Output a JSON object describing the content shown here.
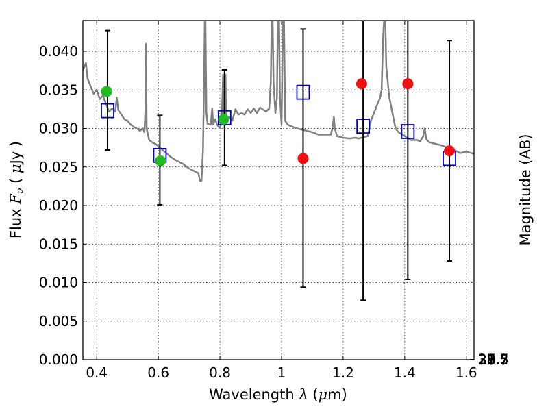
{
  "chart_data": {
    "type": "scatter",
    "title": "",
    "xlabel": {
      "text": "Wavelength",
      "symbol": "λ",
      "unit_open": " (",
      "unit_mu": "μ",
      "unit_rest": "m)"
    },
    "ylabel": {
      "text": "Flux",
      "symbol": "F",
      "subscript": "ν",
      "unit_open": "( ",
      "unit_mu": "μ",
      "unit_rest": "Jy )"
    },
    "y2label": "Magnitude (AB)",
    "xlim": [
      0.355,
      1.625
    ],
    "ylim": [
      0.0,
      0.044
    ],
    "grid": true,
    "x_ticks": [
      {
        "value": 0.4,
        "label": "0.4"
      },
      {
        "value": 0.6,
        "label": "0.6"
      },
      {
        "value": 0.8,
        "label": "0.8"
      },
      {
        "value": 1.0,
        "label": "1"
      },
      {
        "value": 1.2,
        "label": "1.2"
      },
      {
        "value": 1.4,
        "label": "1.4"
      },
      {
        "value": 1.6,
        "label": "1.6"
      }
    ],
    "y_ticks": [
      {
        "value": 0.0,
        "label": "0.000"
      },
      {
        "value": 0.005,
        "label": "0.005"
      },
      {
        "value": 0.01,
        "label": "0.010"
      },
      {
        "value": 0.015,
        "label": "0.015"
      },
      {
        "value": 0.02,
        "label": "0.020"
      },
      {
        "value": 0.025,
        "label": "0.025"
      },
      {
        "value": 0.03,
        "label": "0.030"
      },
      {
        "value": 0.035,
        "label": "0.035"
      },
      {
        "value": 0.04,
        "label": "0.040"
      }
    ],
    "y2_ticks": [
      {
        "value": 27.3,
        "label": "27.3"
      },
      {
        "value": 27.5,
        "label": "27.5"
      },
      {
        "value": 27.7,
        "label": "27.7"
      },
      {
        "value": 28.0,
        "label": "28"
      },
      {
        "value": 28.2,
        "label": "28.2"
      },
      {
        "value": 28.5,
        "label": "28.5"
      },
      {
        "value": 29.0,
        "label": "29"
      },
      {
        "value": 29.5,
        "label": "29.5"
      },
      {
        "value": 30.0,
        "label": "30"
      },
      {
        "value": 31.0,
        "label": "31"
      }
    ],
    "series": [
      {
        "kind": "line",
        "color": "#808080",
        "points": [
          [
            0.355,
            0.0375
          ],
          [
            0.36,
            0.038
          ],
          [
            0.365,
            0.0385
          ],
          [
            0.37,
            0.0365
          ],
          [
            0.38,
            0.0355
          ],
          [
            0.39,
            0.0345
          ],
          [
            0.4,
            0.035
          ],
          [
            0.41,
            0.0338
          ],
          [
            0.42,
            0.0343
          ],
          [
            0.43,
            0.0332
          ],
          [
            0.44,
            0.0322
          ],
          [
            0.45,
            0.0326
          ],
          [
            0.46,
            0.0322
          ],
          [
            0.465,
            0.034
          ],
          [
            0.47,
            0.0324
          ],
          [
            0.48,
            0.0318
          ],
          [
            0.49,
            0.0312
          ],
          [
            0.5,
            0.031
          ],
          [
            0.51,
            0.0305
          ],
          [
            0.52,
            0.0302
          ],
          [
            0.53,
            0.03
          ],
          [
            0.54,
            0.0297
          ],
          [
            0.55,
            0.03
          ],
          [
            0.555,
            0.0295
          ],
          [
            0.558,
            0.0325
          ],
          [
            0.56,
            0.041
          ],
          [
            0.562,
            0.03
          ],
          [
            0.57,
            0.0285
          ],
          [
            0.58,
            0.0282
          ],
          [
            0.59,
            0.028
          ],
          [
            0.6,
            0.0277
          ],
          [
            0.62,
            0.027
          ],
          [
            0.64,
            0.0263
          ],
          [
            0.66,
            0.0258
          ],
          [
            0.68,
            0.0254
          ],
          [
            0.7,
            0.0248
          ],
          [
            0.72,
            0.0244
          ],
          [
            0.73,
            0.0242
          ],
          [
            0.735,
            0.0232
          ],
          [
            0.74,
            0.0232
          ],
          [
            0.745,
            0.027
          ],
          [
            0.748,
            0.035
          ],
          [
            0.751,
            0.044
          ],
          [
            0.753,
            0.044
          ],
          [
            0.756,
            0.032
          ],
          [
            0.76,
            0.0306
          ],
          [
            0.77,
            0.0305
          ],
          [
            0.775,
            0.0326
          ],
          [
            0.778,
            0.0305
          ],
          [
            0.785,
            0.0312
          ],
          [
            0.79,
            0.0305
          ],
          [
            0.8,
            0.03
          ],
          [
            0.805,
            0.031
          ],
          [
            0.808,
            0.034
          ],
          [
            0.81,
            0.037
          ],
          [
            0.812,
            0.031
          ],
          [
            0.815,
            0.0335
          ],
          [
            0.818,
            0.037
          ],
          [
            0.82,
            0.031
          ],
          [
            0.83,
            0.0315
          ],
          [
            0.84,
            0.031
          ],
          [
            0.85,
            0.0325
          ],
          [
            0.86,
            0.0318
          ],
          [
            0.87,
            0.032
          ],
          [
            0.88,
            0.0318
          ],
          [
            0.89,
            0.0325
          ],
          [
            0.9,
            0.032
          ],
          [
            0.91,
            0.0326
          ],
          [
            0.92,
            0.032
          ],
          [
            0.93,
            0.0327
          ],
          [
            0.95,
            0.0322
          ],
          [
            0.96,
            0.0326
          ],
          [
            0.965,
            0.036
          ],
          [
            0.968,
            0.044
          ],
          [
            0.971,
            0.044
          ],
          [
            0.974,
            0.036
          ],
          [
            0.98,
            0.032
          ],
          [
            0.985,
            0.034
          ],
          [
            0.988,
            0.044
          ],
          [
            0.992,
            0.044
          ],
          [
            0.995,
            0.034
          ],
          [
            1.0,
            0.0305
          ],
          [
            1.005,
            0.044
          ],
          [
            1.008,
            0.044
          ],
          [
            1.012,
            0.031
          ],
          [
            1.02,
            0.0305
          ],
          [
            1.03,
            0.0303
          ],
          [
            1.05,
            0.03
          ],
          [
            1.07,
            0.0298
          ],
          [
            1.1,
            0.0295
          ],
          [
            1.12,
            0.0292
          ],
          [
            1.14,
            0.0292
          ],
          [
            1.16,
            0.0292
          ],
          [
            1.165,
            0.03
          ],
          [
            1.17,
            0.0315
          ],
          [
            1.173,
            0.03
          ],
          [
            1.18,
            0.029
          ],
          [
            1.2,
            0.0288
          ],
          [
            1.22,
            0.0287
          ],
          [
            1.24,
            0.0288
          ],
          [
            1.25,
            0.0287
          ],
          [
            1.27,
            0.0289
          ],
          [
            1.28,
            0.029
          ],
          [
            1.285,
            0.03
          ],
          [
            1.29,
            0.031
          ],
          [
            1.3,
            0.032
          ],
          [
            1.31,
            0.033
          ],
          [
            1.32,
            0.034
          ],
          [
            1.325,
            0.035
          ],
          [
            1.33,
            0.042
          ],
          [
            1.333,
            0.044
          ],
          [
            1.337,
            0.044
          ],
          [
            1.34,
            0.038
          ],
          [
            1.35,
            0.034
          ],
          [
            1.36,
            0.032
          ],
          [
            1.37,
            0.03
          ],
          [
            1.38,
            0.0295
          ],
          [
            1.4,
            0.029
          ],
          [
            1.42,
            0.0285
          ],
          [
            1.44,
            0.0285
          ],
          [
            1.45,
            0.0283
          ],
          [
            1.46,
            0.029
          ],
          [
            1.465,
            0.03
          ],
          [
            1.47,
            0.0286
          ],
          [
            1.48,
            0.0282
          ],
          [
            1.5,
            0.028
          ],
          [
            1.52,
            0.0278
          ],
          [
            1.54,
            0.0275
          ],
          [
            1.56,
            0.0272
          ],
          [
            1.58,
            0.0268
          ],
          [
            1.6,
            0.027
          ],
          [
            1.625,
            0.0267
          ]
        ]
      },
      {
        "kind": "open-square",
        "color": "#0000cc",
        "points": [
          [
            0.435,
            0.0323
          ],
          [
            0.605,
            0.0265
          ],
          [
            0.815,
            0.0314
          ],
          [
            1.07,
            0.0347
          ],
          [
            1.265,
            0.0303
          ],
          [
            1.41,
            0.0296
          ],
          [
            1.545,
            0.0261
          ]
        ]
      },
      {
        "kind": "errorbar",
        "color": "#000000",
        "bars": [
          [
            0.435,
            0.0272,
            0.0427
          ],
          [
            0.605,
            0.0201,
            0.0317
          ],
          [
            0.815,
            0.0252,
            0.0376
          ],
          [
            1.07,
            0.0094,
            0.0429
          ],
          [
            1.265,
            0.0077,
            0.044
          ],
          [
            1.41,
            0.0104,
            0.044
          ],
          [
            1.545,
            0.0128,
            0.0414
          ]
        ]
      },
      {
        "kind": "filled-circle",
        "color": "#22bb22",
        "points": [
          [
            0.432,
            0.0348
          ],
          [
            0.607,
            0.0258
          ],
          [
            0.812,
            0.0312
          ]
        ]
      },
      {
        "kind": "filled-circle",
        "color": "#ee1111",
        "points": [
          [
            1.07,
            0.0261
          ],
          [
            1.26,
            0.0358
          ],
          [
            1.41,
            0.0358
          ],
          [
            1.545,
            0.0271
          ]
        ]
      }
    ]
  }
}
